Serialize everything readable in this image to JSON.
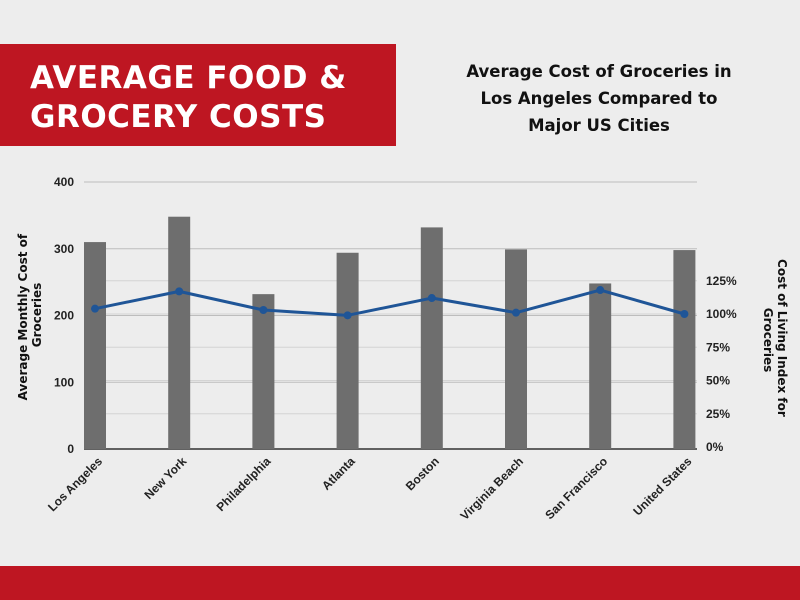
{
  "header": {
    "title_lines": [
      "AVERAGE FOOD &",
      "GROCERY COSTS"
    ]
  },
  "colors": {
    "brand_red": "#be1622",
    "bar": "#6e6e6e",
    "line": "#1f5597"
  },
  "chart_data": {
    "type": "bar",
    "title_lines": [
      "Average Cost of Groceries in",
      "Los Angeles Compared to",
      "Major US Cities"
    ],
    "categories": [
      "Los Angeles",
      "New York",
      "Philadelphia",
      "Atlanta",
      "Boston",
      "Virginia Beach",
      "San Francisco",
      "United States"
    ],
    "series": [
      {
        "type": "bar",
        "axis": "left",
        "values": [
          310,
          348,
          232,
          294,
          332,
          299,
          248,
          298
        ]
      },
      {
        "type": "line",
        "axis": "right",
        "values": [
          104,
          117,
          103,
          99,
          112,
          101,
          118,
          100
        ]
      }
    ],
    "ylabel_left_lines": [
      "Average Monthly Cost of",
      "Groceries"
    ],
    "ylabel_right_lines": [
      "Cost of Living Index for",
      "Groceries"
    ],
    "ylim_left": [
      0,
      400
    ],
    "yticks_left": [
      "0",
      "100",
      "200",
      "300",
      "400"
    ],
    "ylim_right": [
      0,
      200
    ],
    "yticks_right": [
      "0%",
      "25%",
      "50%",
      "75%",
      "100%",
      "125%"
    ],
    "grid": true
  }
}
